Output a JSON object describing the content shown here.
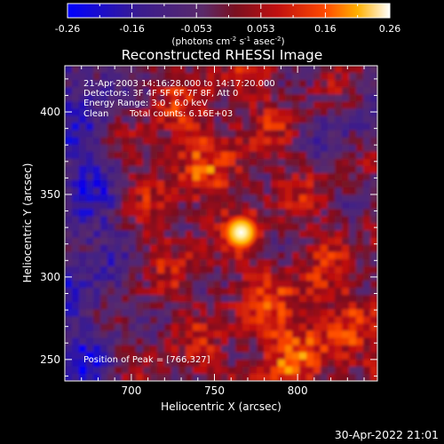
{
  "colorbar": {
    "ticks": [
      "-0.26",
      "-0.16",
      "-0.053",
      "0.053",
      "0.16",
      "0.26"
    ],
    "units_prefix": "(photons cm",
    "units_exp1": "-2",
    "units_mid1": " s",
    "units_exp2": "-1",
    "units_mid2": " asec",
    "units_exp3": "-2",
    "units_suffix": ")",
    "range": [
      -0.26,
      0.26
    ],
    "colors": [
      "#0000ff",
      "#3a1c8f",
      "#5a2a6a",
      "#7a1020",
      "#c01010",
      "#ff4a00",
      "#ffb000",
      "#ffffff"
    ]
  },
  "chart_data": {
    "type": "heatmap",
    "title": "Reconstructed RHESSI Image",
    "xlabel": "Heliocentric X (arcsec)",
    "ylabel": "Heliocentric Y (arcsec)",
    "xlim": [
      660,
      848
    ],
    "ylim": [
      237,
      428
    ],
    "xticks": [
      700,
      750,
      800
    ],
    "yticks": [
      250,
      300,
      350,
      400
    ],
    "peak": [
      766,
      327
    ],
    "annotations": {
      "line1": "21-Apr-2003 14:16:28.000 to 14:17:20.000",
      "line2": "Detectors: 3F 4F 5F 6F 7F 8F, Att 0",
      "line3": "Energy Range: 3.0 - 6.0 keV",
      "line4_left": "Clean",
      "line4_right": "Total counts: 6.16E+03",
      "peak_label": "Position of Peak = [766,327]"
    }
  },
  "timestamp": "30-Apr-2022 21:01"
}
